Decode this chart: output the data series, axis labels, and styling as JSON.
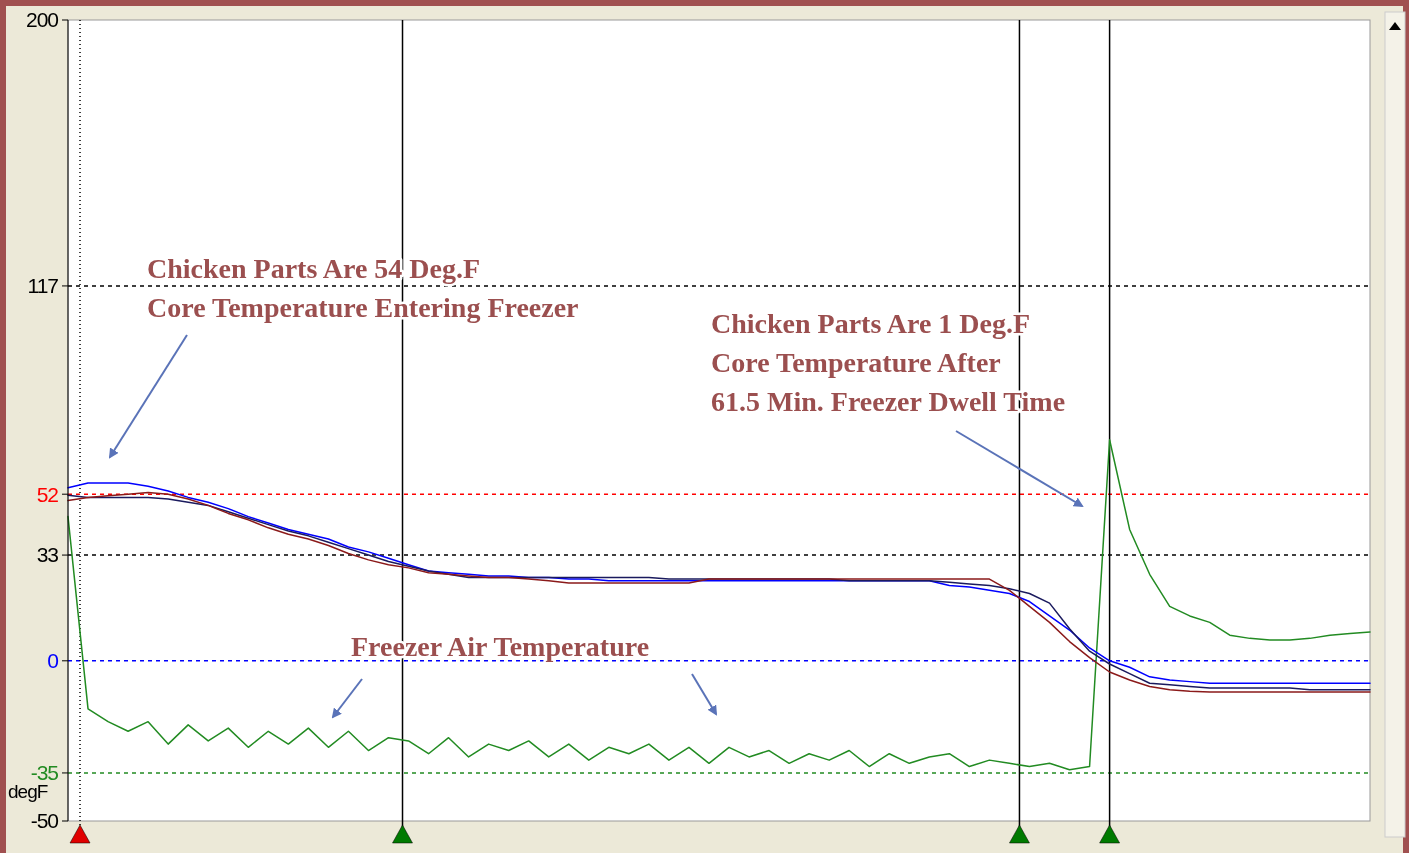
{
  "chart_data": {
    "type": "line",
    "ylabel": "degF",
    "categories": [
      null,
      null,
      null,
      null,
      null,
      null,
      null,
      null,
      null,
      null,
      null,
      null,
      null,
      null,
      null,
      null,
      null,
      null,
      null,
      null,
      null,
      null,
      null,
      null,
      null,
      null,
      null,
      null,
      null,
      null,
      null,
      null,
      null,
      null,
      null,
      null,
      null,
      null,
      null,
      null,
      null,
      null,
      null,
      null,
      null,
      null,
      null,
      null,
      null,
      null,
      null,
      null,
      null,
      null,
      null,
      null,
      null,
      null,
      null,
      null,
      null,
      null,
      null,
      null,
      null,
      null
    ],
    "series": [
      {
        "color": "#228b22",
        "values": [
          45,
          -15,
          -19,
          -22,
          -19,
          -26,
          -20,
          -25,
          -21,
          -27,
          -22,
          -26,
          -21,
          -27,
          -22,
          -28,
          -24,
          -25,
          -29,
          -24,
          -30,
          -26,
          -28,
          -25,
          -30,
          -26,
          -31,
          -27,
          -29,
          -26,
          -31,
          -27,
          -32,
          -27,
          -30,
          -28,
          -32,
          -29,
          -31,
          -28,
          -33,
          -29,
          -32,
          -30,
          -29,
          -33,
          -31,
          -32,
          -33,
          -32,
          -34,
          -33,
          69,
          41,
          27,
          17,
          14,
          12,
          8,
          7,
          6.5,
          6.5,
          7,
          8,
          8.5,
          9
        ]
      },
      {
        "color": "#0000ff",
        "values": [
          54,
          55.5,
          55.5,
          55.5,
          54.5,
          53,
          51,
          49.5,
          47.5,
          45,
          43,
          41,
          39.5,
          38,
          35.5,
          34,
          32,
          30,
          28,
          27.5,
          27,
          26.5,
          26.5,
          26,
          26,
          25.5,
          25.5,
          25,
          25,
          25,
          25,
          25,
          25,
          25,
          25,
          25,
          25,
          25,
          25,
          25,
          25,
          25,
          25,
          25,
          23.5,
          23,
          22,
          21,
          18.5,
          14,
          9.6,
          4,
          0,
          -2,
          -5,
          -6,
          -6.5,
          -7,
          -7,
          -7,
          -7,
          -7,
          -7,
          -7,
          -7,
          -7
        ]
      },
      {
        "color": "#1a1a5e",
        "values": [
          51.7,
          51,
          51,
          51,
          51,
          50.5,
          49.5,
          48.5,
          46.5,
          44.5,
          42.5,
          40.5,
          39,
          37,
          35,
          33,
          31,
          29.5,
          28,
          27,
          26,
          26,
          26,
          26,
          26,
          26,
          26,
          26,
          26,
          26,
          25.5,
          25.5,
          25.5,
          25.5,
          25.5,
          25.5,
          25.5,
          25.5,
          25.5,
          25,
          25,
          25,
          25,
          25,
          24.5,
          24,
          23.5,
          22.5,
          21,
          18,
          10,
          3,
          -1,
          -4,
          -7,
          -7.5,
          -8,
          -8.5,
          -8.5,
          -8.5,
          -8.5,
          -8.5,
          -9,
          -9,
          -9,
          -9
        ]
      },
      {
        "color": "#8b1a1a",
        "values": [
          50,
          51,
          51.5,
          52,
          52.5,
          52,
          50.5,
          48.5,
          46,
          44,
          41.5,
          39.5,
          38,
          36,
          33.5,
          31.5,
          30,
          29,
          27.5,
          27,
          26.5,
          26,
          26,
          25.5,
          25,
          24.3,
          24.3,
          24.3,
          24.3,
          24.3,
          24.3,
          24.3,
          25.5,
          25.5,
          25.5,
          25.5,
          25.5,
          25.5,
          25.5,
          25.5,
          25.5,
          25.5,
          25.5,
          25.5,
          25.5,
          25.5,
          25.5,
          22,
          17,
          12,
          6,
          1,
          -3.5,
          -6,
          -8,
          -9,
          -9.5,
          -9.7,
          -9.7,
          -9.7,
          -9.7,
          -9.7,
          -9.7,
          -9.7,
          -9.7,
          -9.7
        ]
      }
    ],
    "ylim": [
      -50,
      200
    ],
    "yticks": [
      -50,
      -35,
      0,
      33,
      52,
      117,
      200
    ],
    "ref_lines": [
      {
        "axis": "y",
        "value": 117,
        "color": "#000000",
        "line_style": "dashed"
      },
      {
        "axis": "y",
        "value": 52,
        "color": "#ff0000",
        "line_style": "dashed"
      },
      {
        "axis": "y",
        "value": 33,
        "color": "#000000",
        "line_style": "dashed"
      },
      {
        "axis": "y",
        "value": 0,
        "color": "#0000ff",
        "line_style": "dashed"
      },
      {
        "axis": "y",
        "value": -35,
        "color": "#228b22",
        "line_style": "dashed"
      }
    ],
    "annotations": [
      "Chicken Parts Are 54 Deg.F\nCore Temperature Entering Freezer",
      "Chicken Parts Are 1 Deg.F\nCore Temperature After\n61.5 Min. Freezer Dwell Time",
      "Freezer Air Temperature"
    ]
  }
}
